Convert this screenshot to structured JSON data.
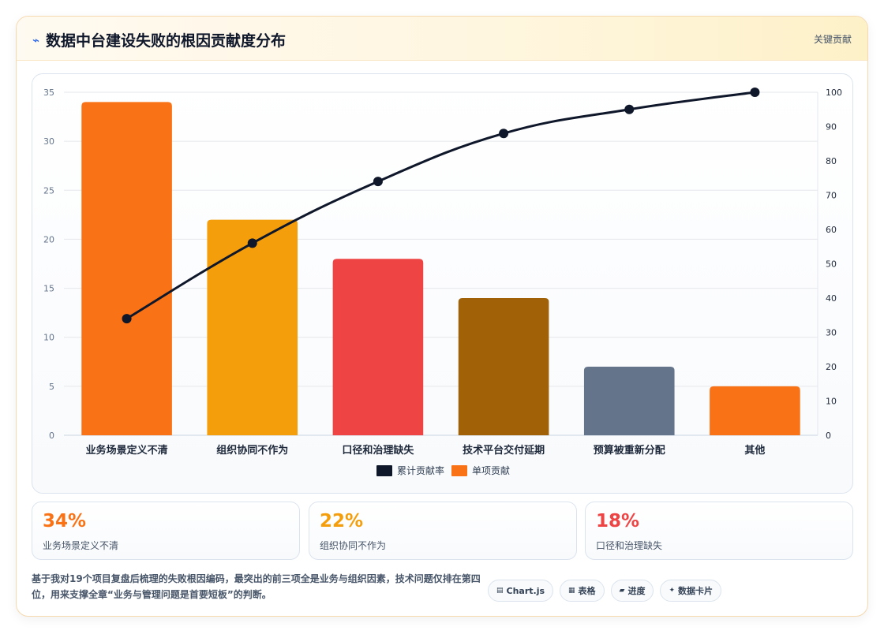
{
  "header": {
    "icon": "zap-icon",
    "title": "数据中台建设失败的根因贡献度分布",
    "tag": "关键贡献"
  },
  "chart_data": {
    "type": "bar",
    "categories": [
      "业务场景定义不清",
      "组织协同不作为",
      "口径和治理缺失",
      "技术平台交付延期",
      "预算被重新分配",
      "其他"
    ],
    "series": [
      {
        "name": "单项贡献",
        "type": "bar",
        "axis": "left",
        "values": [
          34,
          22,
          18,
          14,
          7,
          5
        ],
        "colors": [
          "#f97316",
          "#f59e0b",
          "#ef4444",
          "#a16207",
          "#64748b",
          "#f97316"
        ]
      },
      {
        "name": "累计贡献率",
        "type": "line",
        "axis": "right",
        "values": [
          34,
          56,
          74,
          88,
          95,
          100
        ],
        "color": "#0f172a"
      }
    ],
    "legend": [
      {
        "label": "累计贡献率",
        "color": "#0f172a"
      },
      {
        "label": "单项贡献",
        "color": "#f97316"
      }
    ],
    "legend_position": "bottom",
    "y_left": {
      "min": 0,
      "max": 35,
      "step": 5,
      "ticks": [
        "0",
        "5",
        "10",
        "15",
        "20",
        "25",
        "30",
        "35"
      ]
    },
    "y_right": {
      "min": 0,
      "max": 100,
      "step": 10,
      "ticks": [
        "0",
        "10",
        "20",
        "30",
        "40",
        "50",
        "60",
        "70",
        "80",
        "90",
        "100"
      ]
    },
    "grid": true
  },
  "stats": [
    {
      "value": "34%",
      "label": "业务场景定义不清",
      "color": "#f97316"
    },
    {
      "value": "22%",
      "label": "组织协同不作为",
      "color": "#f59e0b"
    },
    {
      "value": "18%",
      "label": "口径和治理缺失",
      "color": "#ef4444"
    }
  ],
  "footer": {
    "note": "基于我对19个项目复盘后梳理的失败根因编码，最突出的前三项全是业务与组织因素，技术问题仅排在第四位，用来支撑全章“业务与管理问题是首要短板”的判断。",
    "chips": [
      {
        "icon": "chart-icon",
        "glyph": "▤",
        "label": "Chart.js"
      },
      {
        "icon": "table-icon",
        "glyph": "▦",
        "label": "表格"
      },
      {
        "icon": "progress-icon",
        "glyph": "▰",
        "label": "进度"
      },
      {
        "icon": "sparkle-icon",
        "glyph": "✦",
        "label": "数据卡片"
      }
    ]
  }
}
